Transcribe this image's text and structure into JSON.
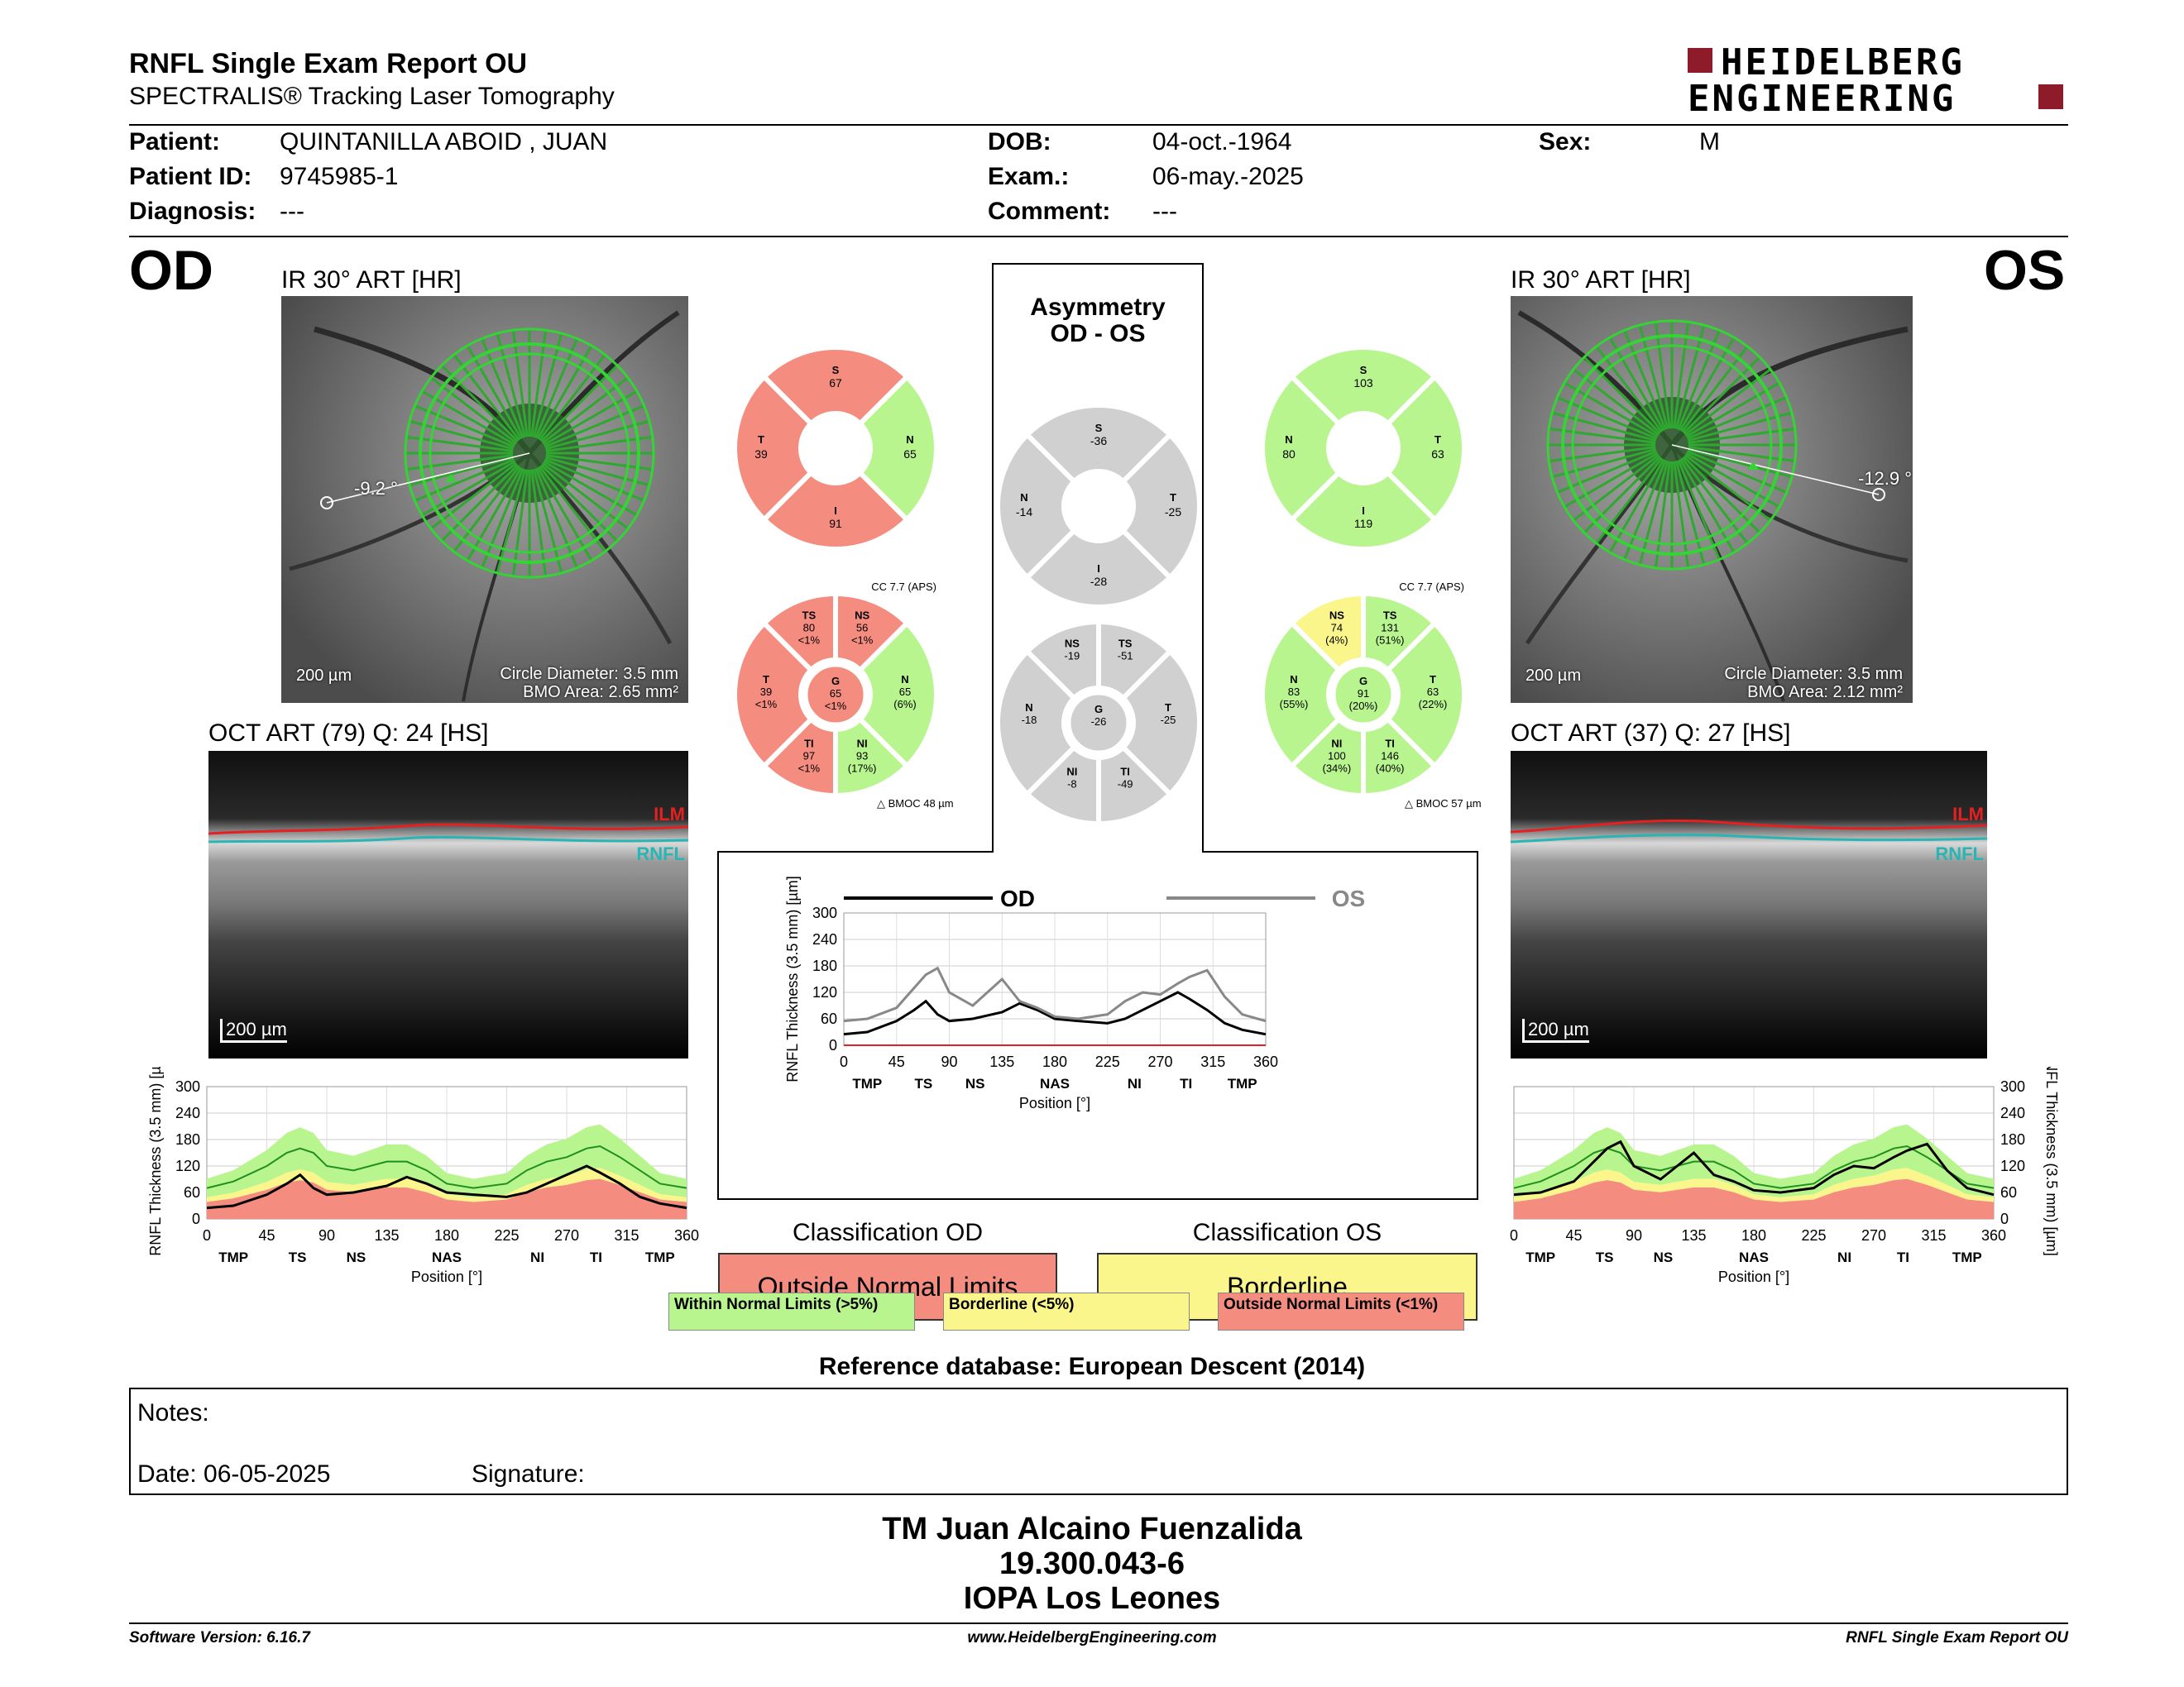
{
  "header": {
    "title": "RNFL Single Exam Report OU",
    "subtitle": "SPECTRALIS® Tracking Laser Tomography",
    "logo_line1": "HEIDELBERG",
    "logo_line2": "ENGINEERING"
  },
  "patient": {
    "patient_label": "Patient:",
    "patient_value": "QUINTANILLA ABOID , JUAN",
    "id_label": "Patient ID:",
    "id_value": "9745985-1",
    "diagnosis_label": "Diagnosis:",
    "diagnosis_value": "---",
    "dob_label": "DOB:",
    "dob_value": "04-oct.-1964",
    "exam_label": "Exam.:",
    "exam_value": "06-may.-2025",
    "comment_label": "Comment:",
    "comment_value": "---",
    "sex_label": "Sex:",
    "sex_value": "M"
  },
  "od": {
    "eye": "OD",
    "ir_caption": "IR 30° ART [HR]",
    "angle": "-9.2 °",
    "scale": "200 µm",
    "circle_diameter": "Circle Diameter: 3.5 mm",
    "bmo_area": "BMO Area: 2.65 mm²",
    "oct_caption": "OCT ART (79) Q: 24 [HS]",
    "oct_scale": "200 µm",
    "ilm": "ILM",
    "rnfl": "RNFL",
    "quad": {
      "S": "67",
      "N": "65",
      "I": "91",
      "T": "39"
    },
    "sectors": {
      "cc": "CC 7.7 (APS)",
      "bmo": "BMOC 48 µm",
      "TS": [
        "TS",
        "80",
        "<1%"
      ],
      "NS": [
        "NS",
        "56",
        "<1%"
      ],
      "N": [
        "N",
        "65",
        "(6%)"
      ],
      "NI": [
        "NI",
        "93",
        "(17%)"
      ],
      "TI": [
        "TI",
        "97",
        "<1%"
      ],
      "T": [
        "T",
        "39",
        "<1%"
      ],
      "G": [
        "G",
        "65",
        "<1%"
      ]
    },
    "classification_title": "Classification OD",
    "classification": "Outside Normal Limits"
  },
  "os": {
    "eye": "OS",
    "ir_caption": "IR 30° ART [HR]",
    "angle": "-12.9 °",
    "scale": "200 µm",
    "circle_diameter": "Circle Diameter: 3.5 mm",
    "bmo_area": "BMO Area: 2.12 mm²",
    "oct_caption": "OCT ART (37) Q: 27 [HS]",
    "oct_scale": "200 µm",
    "ilm": "ILM",
    "rnfl": "RNFL",
    "quad": {
      "S": "103",
      "N": "80",
      "I": "119",
      "T": "63"
    },
    "sectors": {
      "cc": "CC 7.7 (APS)",
      "bmo": "BMOC 57 µm",
      "NS": [
        "NS",
        "74",
        "(4%)"
      ],
      "TS": [
        "TS",
        "131",
        "(51%)"
      ],
      "T": [
        "T",
        "63",
        "(22%)"
      ],
      "TI": [
        "TI",
        "146",
        "(40%)"
      ],
      "NI": [
        "NI",
        "100",
        "(34%)"
      ],
      "N": [
        "N",
        "83",
        "(55%)"
      ],
      "G": [
        "G",
        "91",
        "(20%)"
      ]
    },
    "classification_title": "Classification OS",
    "classification": "Borderline"
  },
  "asym": {
    "title1": "Asymmetry",
    "title2": "OD - OS",
    "quad": {
      "S": "-36",
      "N": "-14",
      "T": "-25",
      "I": "-28"
    },
    "sectors": {
      "NS": "-19",
      "TS": "-51",
      "N": "-18",
      "G": "-26",
      "T": "-25",
      "NI": "-8",
      "TI": "-49"
    },
    "od_legend": "OD",
    "os_legend": "OS"
  },
  "legend": {
    "wnl": "Within Normal Limits (>5%)",
    "bl": "Borderline (<5%)",
    "onl": "Outside Normal Limits (<1%)"
  },
  "colors": {
    "green": "#b9f58f",
    "yellow": "#fbf68b",
    "red": "#f58c80",
    "gray": "#d0d0d0"
  },
  "chart_data": {
    "type": "line",
    "ylabel": "RNFL Thickness (3.5 mm) [µm]",
    "xlabel": "Position [°]",
    "x_ticks": [
      0,
      45,
      90,
      135,
      180,
      225,
      270,
      315,
      360
    ],
    "y_ticks": [
      0,
      60,
      120,
      180,
      240,
      300
    ],
    "sector_labels": [
      {
        "x": 20,
        "label": "TMP"
      },
      {
        "x": 68,
        "label": "TS"
      },
      {
        "x": 112,
        "label": "NS"
      },
      {
        "x": 180,
        "label": "NAS"
      },
      {
        "x": 248,
        "label": "NI"
      },
      {
        "x": 292,
        "label": "TI"
      },
      {
        "x": 340,
        "label": "TMP"
      }
    ],
    "xlim": [
      0,
      360
    ],
    "ylim": [
      0,
      300
    ],
    "series": [
      {
        "name": "OD",
        "x": [
          0,
          20,
          45,
          60,
          70,
          80,
          90,
          110,
          135,
          150,
          165,
          180,
          200,
          225,
          240,
          255,
          270,
          285,
          295,
          310,
          325,
          340,
          360
        ],
        "values": [
          25,
          30,
          55,
          80,
          100,
          70,
          55,
          60,
          75,
          95,
          80,
          60,
          55,
          50,
          60,
          80,
          100,
          120,
          105,
          80,
          50,
          35,
          25
        ]
      },
      {
        "name": "OS",
        "x": [
          0,
          20,
          45,
          60,
          70,
          80,
          90,
          110,
          135,
          150,
          165,
          180,
          200,
          225,
          240,
          255,
          270,
          285,
          295,
          310,
          325,
          340,
          360
        ],
        "values": [
          55,
          60,
          85,
          130,
          160,
          175,
          120,
          90,
          150,
          100,
          85,
          65,
          60,
          70,
          100,
          120,
          115,
          140,
          155,
          170,
          110,
          70,
          55
        ]
      }
    ]
  },
  "od_chart": {
    "x": [
      0,
      20,
      45,
      60,
      70,
      80,
      90,
      110,
      135,
      150,
      165,
      180,
      200,
      225,
      240,
      255,
      270,
      285,
      295,
      310,
      325,
      340,
      360
    ],
    "values": [
      25,
      30,
      55,
      80,
      100,
      70,
      55,
      60,
      75,
      95,
      80,
      60,
      55,
      50,
      60,
      80,
      100,
      120,
      105,
      80,
      50,
      35,
      25
    ],
    "mean": [
      70,
      85,
      120,
      150,
      160,
      150,
      120,
      110,
      130,
      130,
      110,
      80,
      70,
      80,
      110,
      130,
      140,
      160,
      165,
      140,
      110,
      80,
      70
    ]
  },
  "os_chart": {
    "x": [
      0,
      20,
      45,
      60,
      70,
      80,
      90,
      110,
      135,
      150,
      165,
      180,
      200,
      225,
      240,
      255,
      270,
      285,
      295,
      310,
      325,
      340,
      360
    ],
    "values": [
      55,
      60,
      85,
      130,
      160,
      175,
      120,
      90,
      150,
      100,
      85,
      65,
      60,
      70,
      100,
      120,
      115,
      140,
      155,
      170,
      110,
      70,
      55
    ],
    "mean": [
      70,
      85,
      120,
      150,
      160,
      150,
      120,
      110,
      130,
      130,
      110,
      80,
      70,
      80,
      110,
      130,
      140,
      160,
      165,
      140,
      110,
      80,
      70
    ]
  },
  "notes": {
    "notes_label": "Notes:",
    "date_label": "Date: 06-05-2025",
    "signature_label": "Signature:"
  },
  "reference_db": "Reference database: European Descent (2014)",
  "signature_block": {
    "line1": "TM Juan Alcaino Fuenzalida",
    "line2": "19.300.043-6",
    "line3": "IOPA Los Leones"
  },
  "footer": {
    "left": "Software Version: 6.16.7",
    "center": "www.HeidelbergEngineering.com",
    "right": "RNFL Single Exam Report OU"
  }
}
